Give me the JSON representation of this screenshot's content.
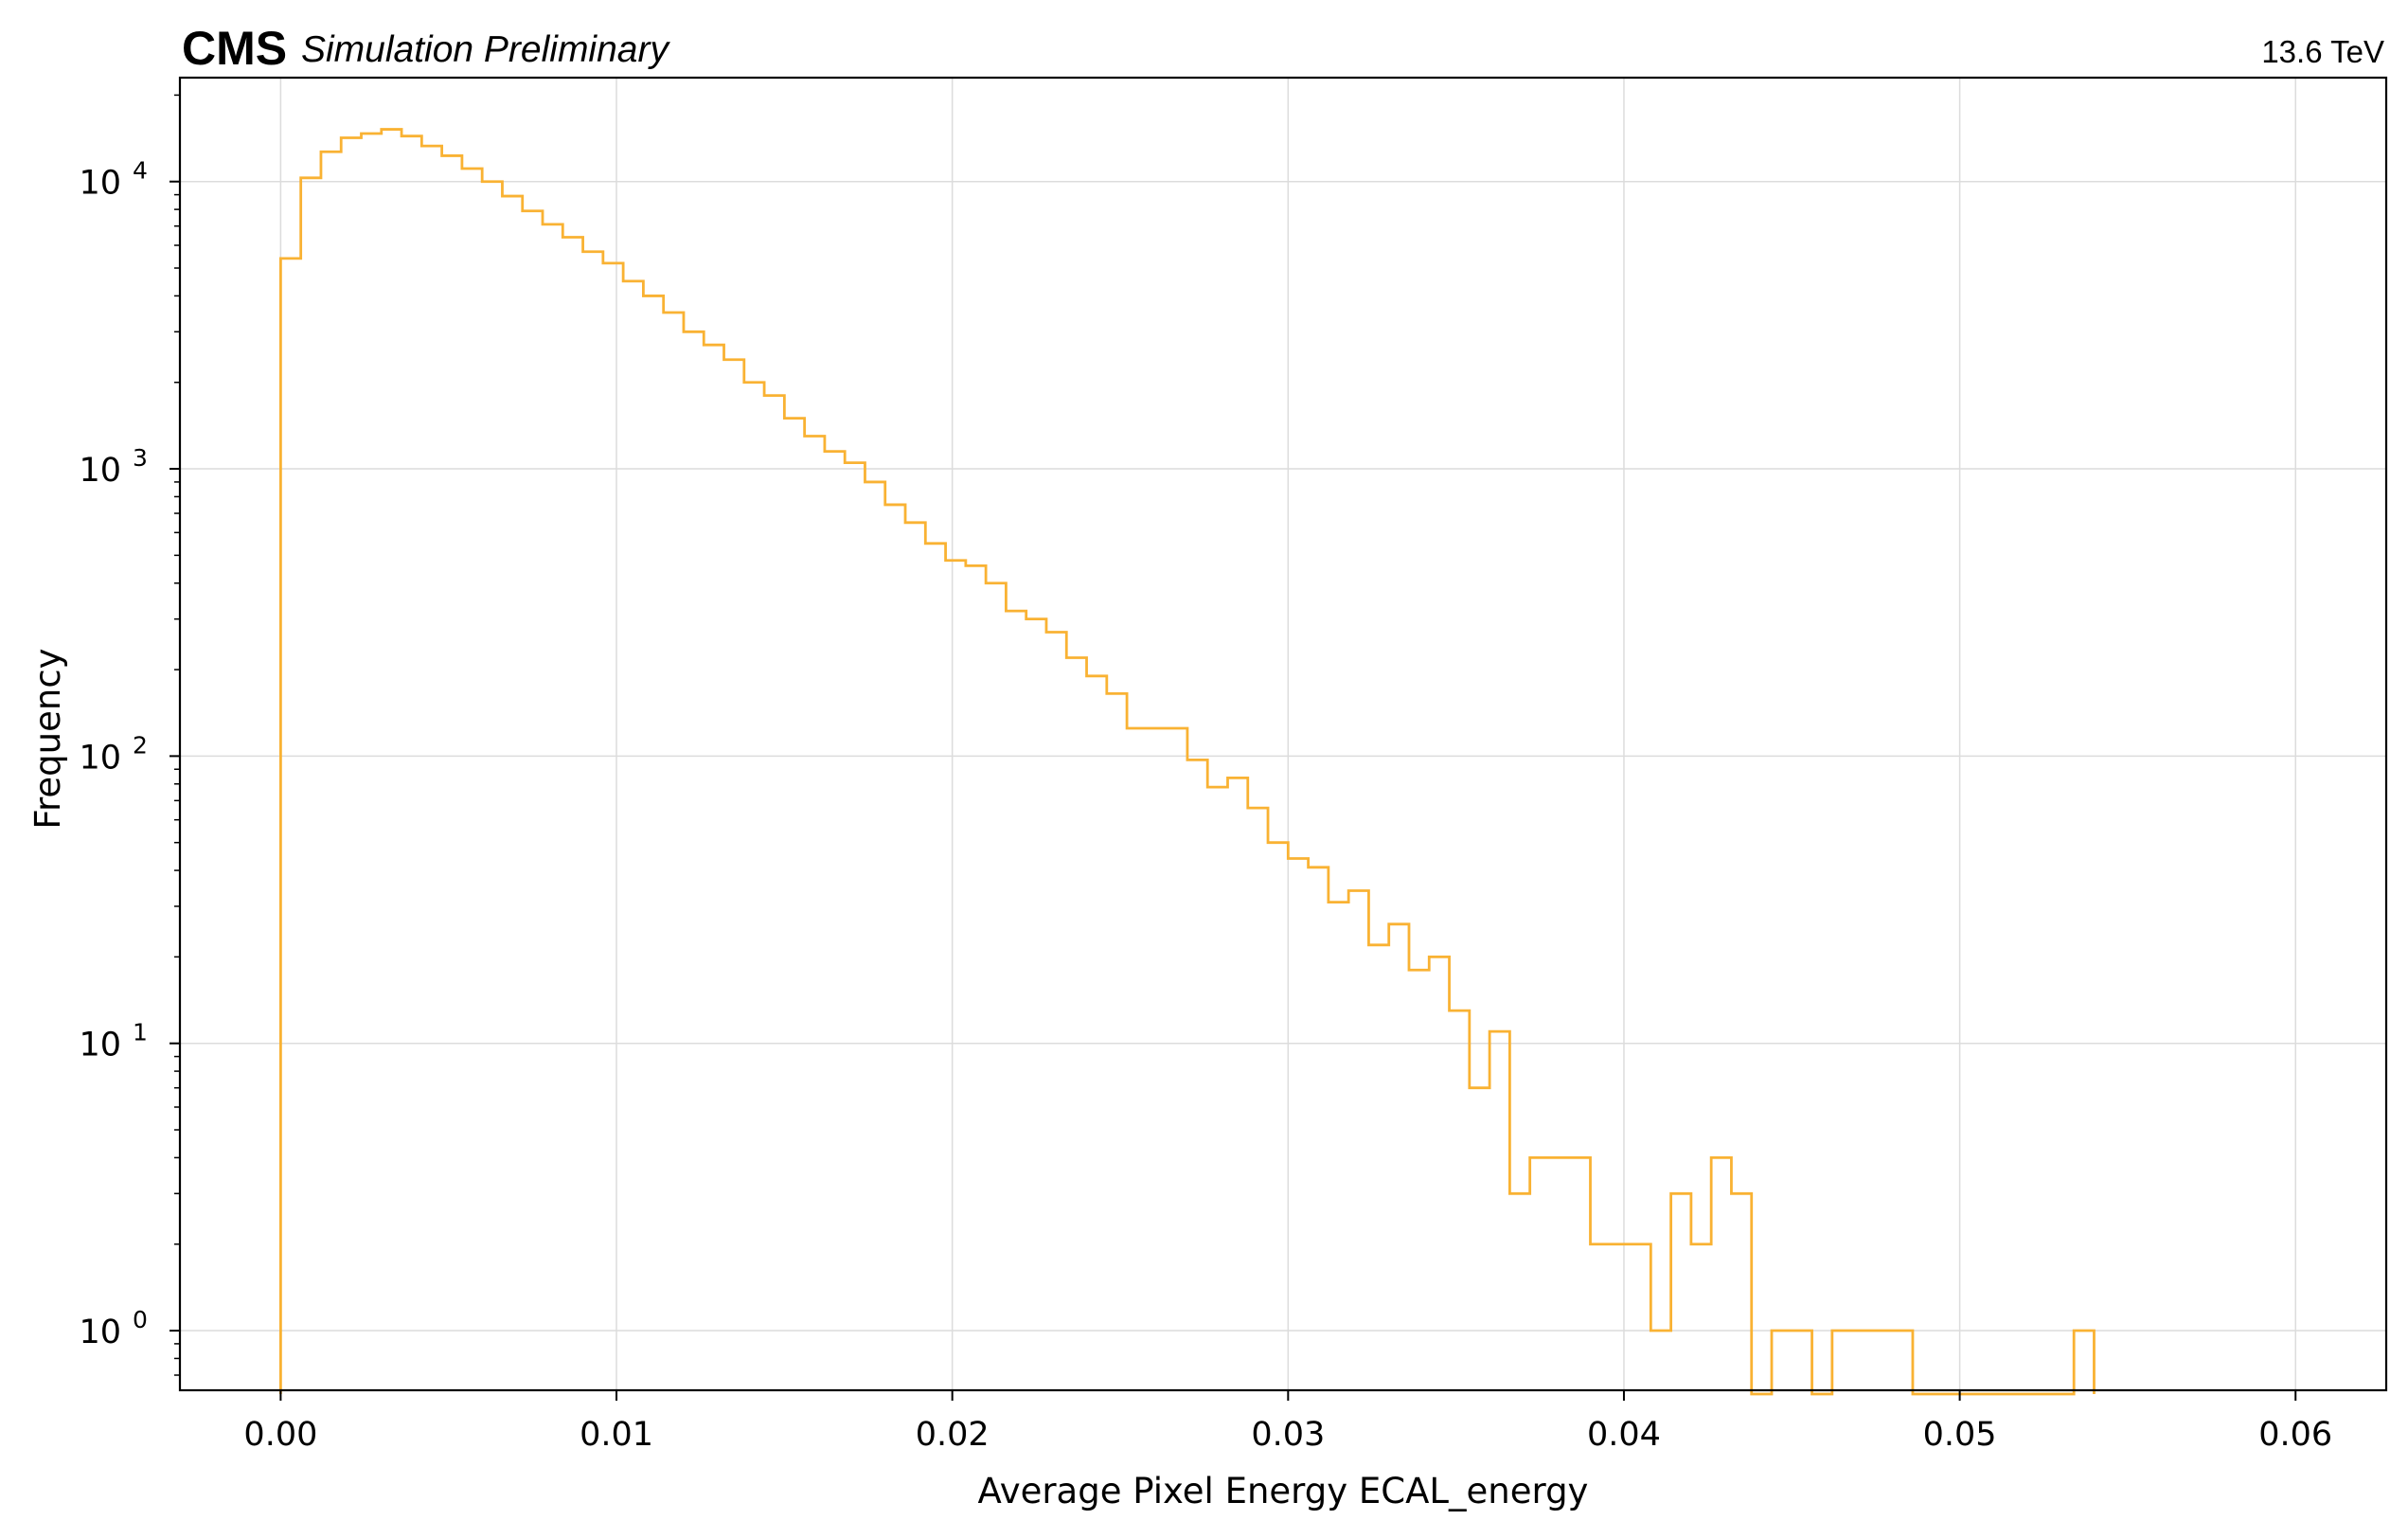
{
  "header": {
    "experiment": "CMS",
    "status": "Simulation Preliminary",
    "energy": "13.6 TeV"
  },
  "chart_data": {
    "type": "histogram",
    "xlabel": "Average Pixel Energy ECAL_energy",
    "ylabel": "Frequency",
    "yscale": "log",
    "xlim": [
      -0.003,
      0.0627
    ],
    "ylim": [
      0.62,
      23000
    ],
    "grid": true,
    "color": "#f9b233",
    "x_ticks": [
      0.0,
      0.01,
      0.02,
      0.03,
      0.04,
      0.05,
      0.06
    ],
    "x_tick_labels": [
      "0.00",
      "0.01",
      "0.02",
      "0.03",
      "0.04",
      "0.05",
      "0.06"
    ],
    "y_ticks": [
      1,
      10,
      100,
      1000,
      10000
    ],
    "y_tick_labels": [
      {
        "base": "10",
        "exp": "0"
      },
      {
        "base": "10",
        "exp": "1"
      },
      {
        "base": "10",
        "exp": "2"
      },
      {
        "base": "10",
        "exp": "3"
      },
      {
        "base": "10",
        "exp": "4"
      }
    ],
    "bin_start": 0.0,
    "bin_width": 0.0006,
    "counts": [
      5400,
      10300,
      12700,
      14200,
      14700,
      15200,
      14400,
      13300,
      12300,
      11100,
      10000,
      8900,
      7900,
      7100,
      6400,
      5700,
      5200,
      4500,
      4000,
      3500,
      3000,
      2700,
      2400,
      2000,
      1800,
      1500,
      1300,
      1150,
      1050,
      900,
      750,
      650,
      550,
      480,
      460,
      400,
      320,
      300,
      270,
      220,
      190,
      165,
      125,
      125,
      125,
      97,
      78,
      84,
      66,
      50,
      44,
      41,
      31,
      34,
      22,
      26,
      18,
      20,
      13,
      7,
      11,
      3,
      4,
      4,
      4,
      2,
      2,
      2,
      1,
      3,
      2,
      4,
      3,
      0,
      1,
      1,
      0,
      1,
      1,
      1,
      1,
      0,
      0,
      0,
      0,
      0,
      0,
      0,
      0,
      1
    ]
  }
}
